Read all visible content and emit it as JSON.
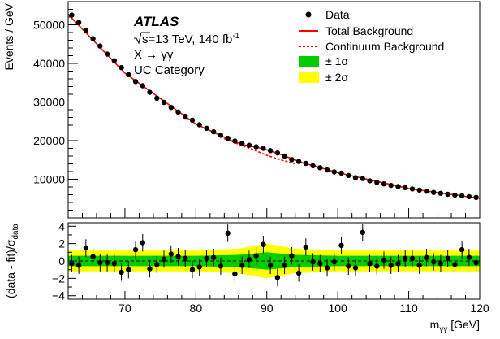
{
  "chart_data": [
    {
      "type": "scatter",
      "panel": "main",
      "title": "",
      "annotation": {
        "experiment": "ATLAS",
        "energy_prefix": "s",
        "energy_text": "=13 TeV, 140 fb",
        "energy_sup": "-1",
        "process": "X → γγ",
        "category": "UC Category"
      },
      "ylabel": "Events / GeV",
      "xlim": [
        62,
        120
      ],
      "ylim": [
        0,
        56000
      ],
      "yticks": [
        10000,
        20000,
        30000,
        40000,
        50000
      ],
      "ytick_labels": [
        "10000",
        "20000",
        "30000",
        "40000",
        "50000"
      ],
      "legend_position": "top-right",
      "legend": [
        {
          "key": "data",
          "label": "Data"
        },
        {
          "key": "total",
          "label": "Total Background"
        },
        {
          "key": "continuum",
          "label": "Continuum Background"
        },
        {
          "key": "band1",
          "label": "± 1σ"
        },
        {
          "key": "band2",
          "label": "± 2σ"
        }
      ],
      "colors": {
        "data": "#000000",
        "total": "#ff0000",
        "continuum": "#ff0000",
        "band1": "#00cc00",
        "band2": "#ffff00"
      },
      "series": [
        {
          "name": "Data",
          "x": [
            62.5,
            63.5,
            64.5,
            65.5,
            66.5,
            67.5,
            68.5,
            69.5,
            70.5,
            71.5,
            72.5,
            73.5,
            74.5,
            75.5,
            76.5,
            77.5,
            78.5,
            79.5,
            80.5,
            81.5,
            82.5,
            83.5,
            84.5,
            85.5,
            86.5,
            87.5,
            88.5,
            89.5,
            90.5,
            91.5,
            92.5,
            93.5,
            94.5,
            95.5,
            96.5,
            97.5,
            98.5,
            99.5,
            100.5,
            101.5,
            102.5,
            103.5,
            104.5,
            105.5,
            106.5,
            107.5,
            108.5,
            109.5,
            110.5,
            111.5,
            112.5,
            113.5,
            114.5,
            115.5,
            116.5,
            117.5,
            118.5,
            119.5
          ],
          "y": [
            52500,
            50600,
            48600,
            46400,
            44500,
            42400,
            40700,
            38900,
            37100,
            35300,
            34200,
            32500,
            31000,
            29900,
            28600,
            27400,
            26300,
            25300,
            24100,
            23200,
            22300,
            21400,
            20600,
            19900,
            19300,
            18800,
            18400,
            18000,
            17400,
            16800,
            16000,
            15100,
            14600,
            14100,
            13500,
            13000,
            12400,
            11900,
            11600,
            11000,
            10400,
            10200,
            9600,
            9200,
            8800,
            8400,
            8100,
            7800,
            7500,
            7200,
            6900,
            6600,
            6350,
            6100,
            5900,
            5700,
            5500,
            5300
          ]
        },
        {
          "name": "Total Background",
          "x": [
            62,
            70,
            80,
            85,
            87,
            89,
            90,
            92,
            95,
            100,
            110,
            120
          ],
          "y": [
            52700,
            37500,
            24300,
            20000,
            18800,
            18100,
            17600,
            16400,
            14300,
            11700,
            7600,
            5050
          ]
        },
        {
          "name": "Continuum Background",
          "x": [
            84,
            86,
            88,
            90,
            92,
            94
          ],
          "y": [
            20500,
            19100,
            17700,
            16200,
            15000,
            14000
          ]
        }
      ]
    },
    {
      "type": "scatter",
      "panel": "ratio",
      "ylabel": "(data - fit)/σ",
      "ylabel_sub": "data",
      "xlabel": "m",
      "xlabel_sub": "γγ",
      "xlabel_unit": " [GeV]",
      "xlim": [
        62,
        120
      ],
      "ylim": [
        -4.4,
        4.4
      ],
      "xticks": [
        70,
        80,
        90,
        100,
        110,
        120
      ],
      "xtick_labels": [
        "70",
        "80",
        "90",
        "100",
        "110",
        "120"
      ],
      "yticks": [
        -4,
        -2,
        0,
        2,
        4
      ],
      "ytick_labels": [
        "−4",
        "−2",
        "0",
        "2",
        "4"
      ],
      "band_1sigma": [
        0.6,
        0.6,
        0.7,
        1.0,
        0.7,
        0.6,
        0.6
      ],
      "band_2sigma": [
        1.2,
        1.2,
        1.4,
        2.0,
        1.4,
        1.2,
        1.2
      ],
      "band_x": [
        62,
        80,
        86,
        90,
        94,
        100,
        120
      ],
      "series": [
        {
          "name": "Data",
          "x": [
            62.5,
            63.5,
            64.5,
            65.5,
            66.5,
            67.5,
            68.5,
            69.5,
            70.5,
            71.5,
            72.5,
            73.5,
            74.5,
            75.5,
            76.5,
            77.5,
            78.5,
            79.5,
            80.5,
            81.5,
            82.5,
            83.5,
            84.5,
            85.5,
            86.5,
            87.5,
            88.5,
            89.5,
            90.5,
            91.5,
            92.5,
            93.5,
            94.5,
            95.5,
            96.5,
            97.5,
            98.5,
            99.5,
            100.5,
            101.5,
            102.5,
            103.5,
            104.5,
            105.5,
            106.5,
            107.5,
            108.5,
            109.5,
            110.5,
            111.5,
            112.5,
            113.5,
            114.5,
            115.5,
            116.5,
            117.5,
            118.5,
            119.5
          ],
          "y": [
            -0.3,
            -0.5,
            1.5,
            0.5,
            -0.2,
            -0.2,
            -0.3,
            -1.3,
            -1.0,
            1.3,
            2.1,
            -0.9,
            -0.4,
            0.2,
            0.8,
            0.5,
            0.3,
            -1.0,
            -0.7,
            0.3,
            0.4,
            -0.6,
            3.2,
            -1.5,
            -0.5,
            0.2,
            0.6,
            1.9,
            -0.5,
            -1.9,
            -0.5,
            0.6,
            -1.4,
            1.6,
            -0.1,
            -0.3,
            -0.8,
            -0.1,
            1.8,
            -0.6,
            -0.8,
            3.3,
            -0.3,
            -0.6,
            0.1,
            -0.5,
            -0.3,
            0.3,
            0.3,
            -0.5,
            0.4,
            -0.1,
            -0.3,
            0.3,
            -0.4,
            1.3,
            0.4,
            -0.2
          ]
        }
      ]
    }
  ]
}
